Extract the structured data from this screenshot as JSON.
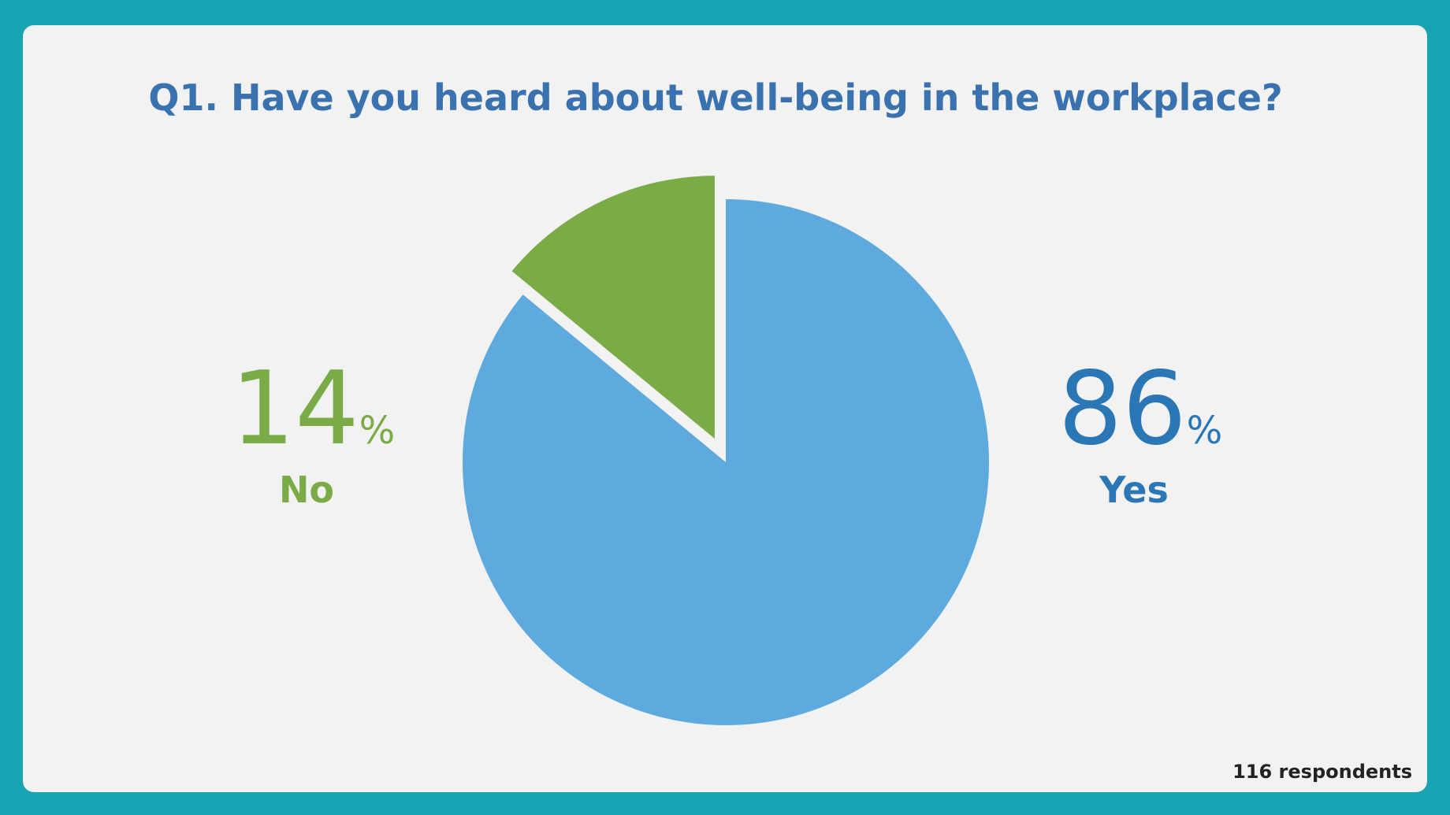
{
  "chart_data": {
    "type": "pie",
    "title": "Q1. Have you heard about well-being in the workplace?",
    "categories": [
      "Yes",
      "No"
    ],
    "values": [
      86,
      14
    ],
    "colors": [
      "#5eaade",
      "#7bab47"
    ],
    "label_colors": [
      "#2b77b6",
      "#7bab47"
    ],
    "unit": "%",
    "note": "116 respondents"
  }
}
